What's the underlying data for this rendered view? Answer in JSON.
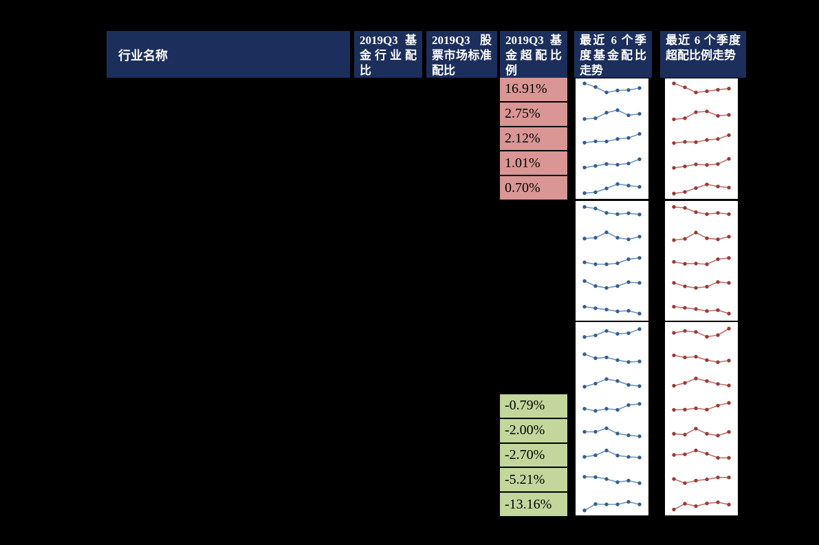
{
  "table": {
    "header": {
      "industry_name": "行业名称",
      "fund_allocation": "2019Q3 基金行业配比",
      "market_standard": "2019Q3 股票市场标准配比",
      "fund_overweight": "2019Q3 基金超配比例",
      "allocation_trend": "最近 6 个季度基金配比走势",
      "overweight_trend": "最近 6 个季度超配比例走势"
    },
    "overweight": {
      "positive": [
        "16.91%",
        "2.75%",
        "2.12%",
        "1.01%",
        "0.70%"
      ],
      "negative": [
        "-0.79%",
        "-2.00%",
        "-2.70%",
        "-5.21%",
        "-13.16%"
      ]
    }
  },
  "colors": {
    "page_bg": "#000000",
    "header_bg": "#1b2e5c",
    "header_text": "#ffffff",
    "positive_bg": "#d99694",
    "negative_bg": "#c3d69b",
    "panel_bg": "#ffffff",
    "blue_line": "#7094c4",
    "blue_marker": "#33608f",
    "red_line": "#c0716d",
    "red_marker": "#9c3936"
  },
  "chart_data": {
    "type": "table",
    "columns": [
      "行业名称",
      "2019Q3 基金行业配比",
      "2019Q3 股票市场标准配比",
      "2019Q3 基金超配比例",
      "最近 6 个季度基金配比走势",
      "最近 6 个季度超配比例走势"
    ],
    "visible_overweight_values_pct": {
      "top_positive": [
        16.91,
        2.75,
        2.12,
        1.01,
        0.7
      ],
      "bottom_negative": [
        -0.79,
        -2.0,
        -2.7,
        -5.21,
        -13.16
      ]
    },
    "points_per_sparkline": 6,
    "sparkline_values_normalized": true,
    "sparkline_groups": [
      {
        "rows": [
          {
            "fund_trend": [
              0.95,
              0.72,
              0.38,
              0.5,
              0.53,
              0.65
            ],
            "overweight_trend": [
              0.95,
              0.7,
              0.38,
              0.45,
              0.55,
              0.62
            ]
          },
          {
            "fund_trend": [
              0.22,
              0.27,
              0.62,
              0.78,
              0.45,
              0.55
            ],
            "overweight_trend": [
              0.2,
              0.27,
              0.65,
              0.7,
              0.42,
              0.48
            ]
          },
          {
            "fund_trend": [
              0.25,
              0.33,
              0.32,
              0.48,
              0.55,
              0.8
            ],
            "overweight_trend": [
              0.22,
              0.3,
              0.28,
              0.42,
              0.48,
              0.72
            ]
          },
          {
            "fund_trend": [
              0.2,
              0.3,
              0.42,
              0.38,
              0.45,
              0.72
            ],
            "overweight_trend": [
              0.18,
              0.27,
              0.4,
              0.36,
              0.42,
              0.75
            ]
          },
          {
            "fund_trend": [
              0.1,
              0.16,
              0.4,
              0.68,
              0.58,
              0.5
            ],
            "overweight_trend": [
              0.08,
              0.18,
              0.42,
              0.65,
              0.52,
              0.45
            ]
          }
        ]
      },
      {
        "rows": [
          {
            "fund_trend": [
              0.88,
              0.78,
              0.5,
              0.42,
              0.48,
              0.4
            ],
            "overweight_trend": [
              0.88,
              0.82,
              0.55,
              0.42,
              0.5,
              0.42
            ]
          },
          {
            "fund_trend": [
              0.4,
              0.45,
              0.8,
              0.45,
              0.35,
              0.52
            ],
            "overweight_trend": [
              0.3,
              0.38,
              0.78,
              0.42,
              0.35,
              0.52
            ]
          },
          {
            "fund_trend": [
              0.42,
              0.3,
              0.3,
              0.36,
              0.62,
              0.7
            ],
            "overweight_trend": [
              0.45,
              0.33,
              0.34,
              0.3,
              0.62,
              0.7
            ]
          },
          {
            "fund_trend": [
              0.72,
              0.4,
              0.28,
              0.4,
              0.65,
              0.6
            ],
            "overweight_trend": [
              0.6,
              0.38,
              0.28,
              0.36,
              0.66,
              0.6
            ]
          },
          {
            "fund_trend": [
              0.62,
              0.52,
              0.44,
              0.32,
              0.36,
              0.18
            ],
            "overweight_trend": [
              0.62,
              0.55,
              0.47,
              0.34,
              0.4,
              0.18
            ]
          }
        ]
      },
      {
        "rows": [
          {
            "fund_trend": [
              0.32,
              0.42,
              0.7,
              0.52,
              0.56,
              0.82
            ],
            "overweight_trend": [
              0.58,
              0.7,
              0.64,
              0.34,
              0.44,
              0.85
            ]
          },
          {
            "fund_trend": [
              0.75,
              0.5,
              0.55,
              0.38,
              0.26,
              0.3
            ],
            "overweight_trend": [
              0.68,
              0.55,
              0.6,
              0.38,
              0.25,
              0.35
            ]
          },
          {
            "fund_trend": [
              0.22,
              0.42,
              0.7,
              0.58,
              0.34,
              0.26
            ],
            "overweight_trend": [
              0.28,
              0.46,
              0.74,
              0.58,
              0.4,
              0.3
            ]
          },
          {
            "fund_trend": [
              0.35,
              0.22,
              0.35,
              0.28,
              0.58,
              0.66
            ],
            "overweight_trend": [
              0.28,
              0.3,
              0.38,
              0.3,
              0.55,
              0.72
            ]
          },
          {
            "fund_trend": [
              0.46,
              0.46,
              0.68,
              0.35,
              0.24,
              0.18
            ],
            "overweight_trend": [
              0.34,
              0.28,
              0.66,
              0.34,
              0.22,
              0.45
            ]
          },
          {
            "fund_trend": [
              0.4,
              0.5,
              0.8,
              0.48,
              0.4,
              0.36
            ],
            "overweight_trend": [
              0.52,
              0.56,
              0.8,
              0.6,
              0.34,
              0.34
            ]
          },
          {
            "fund_trend": [
              0.66,
              0.64,
              0.52,
              0.32,
              0.42,
              0.26
            ],
            "overweight_trend": [
              0.52,
              0.26,
              0.42,
              0.5,
              0.62,
              0.62
            ]
          },
          {
            "fund_trend": [
              0.06,
              0.46,
              0.44,
              0.44,
              0.6,
              0.44
            ],
            "overweight_trend": [
              0.12,
              0.48,
              0.33,
              0.5,
              0.57,
              0.43
            ]
          }
        ]
      }
    ]
  }
}
